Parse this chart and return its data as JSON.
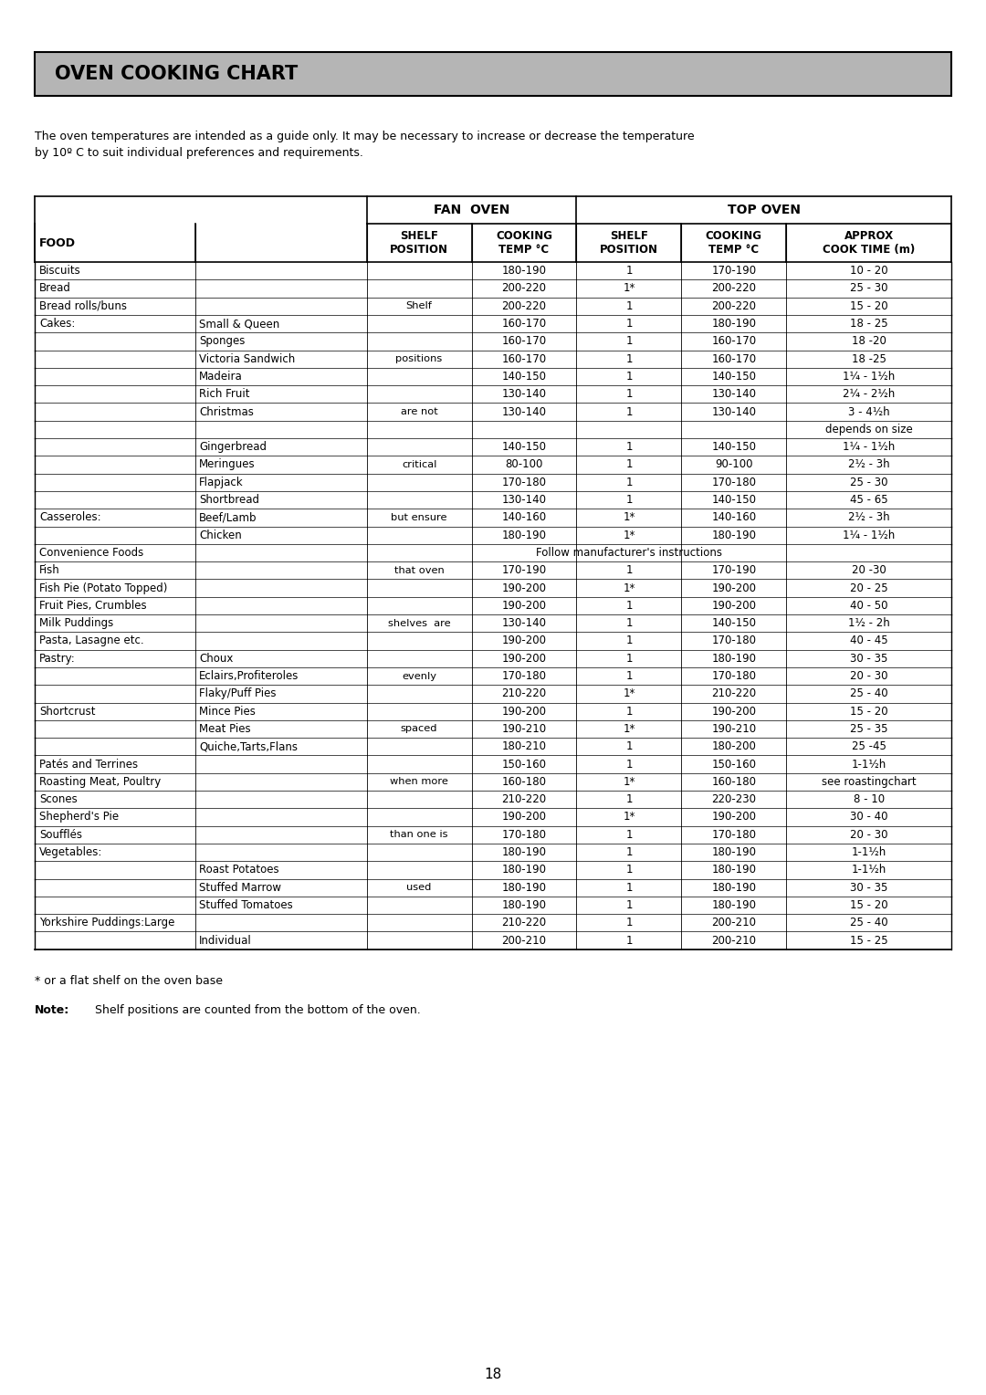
{
  "title": "OVEN COOKING CHART",
  "intro_text": "The oven temperatures are intended as a guide only. It may be necessary to increase or decrease the temperature\nby 10º C to suit individual preferences and requirements.",
  "fan_oven_header": "FAN  OVEN",
  "top_oven_header": "TOP OVEN",
  "rows": [
    [
      "Biscuits",
      "",
      "",
      "180-190",
      "1",
      "170-190",
      "10 - 20"
    ],
    [
      "Bread",
      "",
      "",
      "200-220",
      "1*",
      "200-220",
      "25 - 30"
    ],
    [
      "Bread rolls/buns",
      "",
      "Shelf",
      "200-220",
      "1",
      "200-220",
      "15 - 20"
    ],
    [
      "Cakes:",
      "Small & Queen",
      "",
      "160-170",
      "1",
      "180-190",
      "18 - 25"
    ],
    [
      "",
      "Sponges",
      "",
      "160-170",
      "1",
      "160-170",
      "18 -20"
    ],
    [
      "",
      "Victoria Sandwich",
      "positions",
      "160-170",
      "1",
      "160-170",
      "18 -25"
    ],
    [
      "",
      "Madeira",
      "",
      "140-150",
      "1",
      "140-150",
      "1¼ - 1½h"
    ],
    [
      "",
      "Rich Fruit",
      "",
      "130-140",
      "1",
      "130-140",
      "2¼ - 2½h"
    ],
    [
      "",
      "Christmas",
      "are not",
      "130-140",
      "1",
      "130-140",
      "3 - 4½h"
    ],
    [
      "",
      "",
      "",
      "",
      "",
      "",
      "depends on size"
    ],
    [
      "",
      "Gingerbread",
      "",
      "140-150",
      "1",
      "140-150",
      "1¼ - 1½h"
    ],
    [
      "",
      "Meringues",
      "critical",
      "80-100",
      "1",
      "90-100",
      "2½ - 3h"
    ],
    [
      "",
      "Flapjack",
      "",
      "170-180",
      "1",
      "170-180",
      "25 - 30"
    ],
    [
      "",
      "Shortbread",
      "",
      "130-140",
      "1",
      "140-150",
      "45 - 65"
    ],
    [
      "Casseroles:",
      "Beef/Lamb",
      "but ensure",
      "140-160",
      "1*",
      "140-160",
      "2½ - 3h"
    ],
    [
      "",
      "Chicken",
      "",
      "180-190",
      "1*",
      "180-190",
      "1¼ - 1½h"
    ],
    [
      "Convenience Foods",
      "",
      "",
      "Follow manufacturer's instructions",
      "",
      "",
      ""
    ],
    [
      "Fish",
      "",
      "that oven",
      "170-190",
      "1",
      "170-190",
      "20 -30"
    ],
    [
      "Fish Pie (Potato Topped)",
      "",
      "",
      "190-200",
      "1*",
      "190-200",
      "20 - 25"
    ],
    [
      "Fruit Pies, Crumbles",
      "",
      "",
      "190-200",
      "1",
      "190-200",
      "40 - 50"
    ],
    [
      "Milk Puddings",
      "",
      "shelves  are",
      "130-140",
      "1",
      "140-150",
      "1½ - 2h"
    ],
    [
      "Pasta, Lasagne etc.",
      "",
      "",
      "190-200",
      "1",
      "170-180",
      "40 - 45"
    ],
    [
      "Pastry:",
      "Choux",
      "",
      "190-200",
      "1",
      "180-190",
      "30 - 35"
    ],
    [
      "",
      "Eclairs,Profiteroles",
      "evenly",
      "170-180",
      "1",
      "170-180",
      "20 - 30"
    ],
    [
      "",
      "Flaky/Puff Pies",
      "",
      "210-220",
      "1*",
      "210-220",
      "25 - 40"
    ],
    [
      "Shortcrust",
      "Mince Pies",
      "",
      "190-200",
      "1",
      "190-200",
      "15 - 20"
    ],
    [
      "",
      "Meat Pies",
      "spaced",
      "190-210",
      "1*",
      "190-210",
      "25 - 35"
    ],
    [
      "",
      "Quiche,Tarts,Flans",
      "",
      "180-210",
      "1",
      "180-200",
      "25 -45"
    ],
    [
      "Patés and Terrines",
      "",
      "",
      "150-160",
      "1",
      "150-160",
      "1-1½h"
    ],
    [
      "Roasting Meat, Poultry",
      "",
      "when more",
      "160-180",
      "1*",
      "160-180",
      "see roastingchart"
    ],
    [
      "Scones",
      "",
      "",
      "210-220",
      "1",
      "220-230",
      "8 - 10"
    ],
    [
      "Shepherd's Pie",
      "",
      "",
      "190-200",
      "1*",
      "190-200",
      "30 - 40"
    ],
    [
      "Soufflés",
      "",
      "than one is",
      "170-180",
      "1",
      "170-180",
      "20 - 30"
    ],
    [
      "Vegetables:",
      "",
      "",
      "180-190",
      "1",
      "180-190",
      "1-1½h"
    ],
    [
      "",
      "Roast Potatoes",
      "",
      "180-190",
      "1",
      "180-190",
      "1-1½h"
    ],
    [
      "",
      "Stuffed Marrow",
      "used",
      "180-190",
      "1",
      "180-190",
      "30 - 35"
    ],
    [
      "",
      "Stuffed Tomatoes",
      "",
      "180-190",
      "1",
      "180-190",
      "15 - 20"
    ],
    [
      "Yorkshire Puddings:Large",
      "",
      "",
      "210-220",
      "1",
      "200-210",
      "25 - 40"
    ],
    [
      "",
      "Individual",
      "",
      "200-210",
      "1",
      "200-210",
      "15 - 25"
    ]
  ],
  "footnote1": "* or a flat shelf on the oven base",
  "footnote2_bold": "Note:",
  "footnote2_rest": "  Shelf positions are counted from the bottom of the oven.",
  "page_number": "18",
  "bg_color": "#ffffff",
  "header_bg": "#b5b5b5",
  "title_color": "#000000"
}
